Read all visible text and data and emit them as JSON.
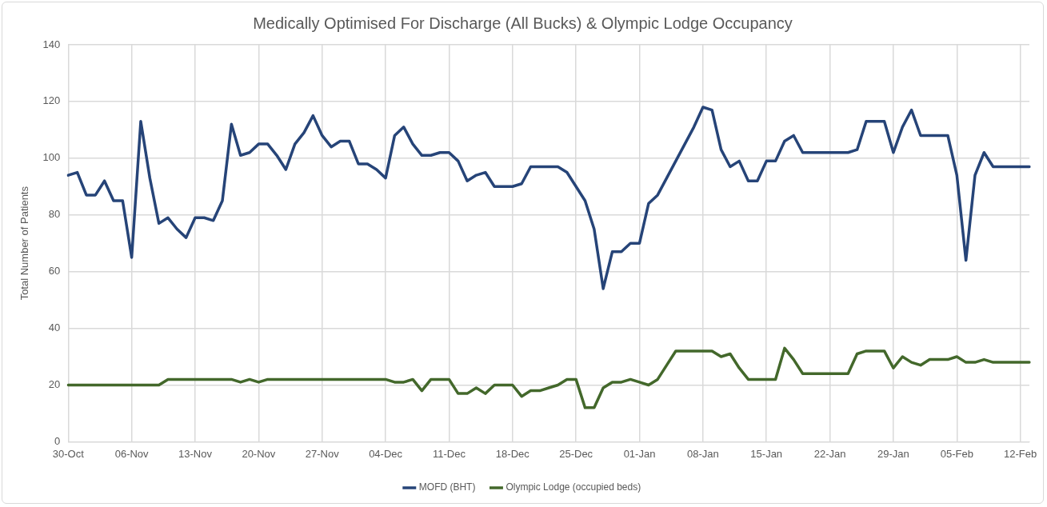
{
  "chart_data": {
    "type": "line",
    "title": "Medically Optimised For Discharge (All Bucks) & Olympic Lodge Occupancy",
    "ylabel": "Total Number of Patients",
    "categories": [
      "30-Oct",
      null,
      null,
      null,
      null,
      null,
      null,
      "06-Nov",
      null,
      null,
      null,
      null,
      null,
      null,
      "13-Nov",
      null,
      null,
      null,
      null,
      null,
      null,
      "20-Nov",
      null,
      null,
      null,
      null,
      null,
      null,
      "27-Nov",
      null,
      null,
      null,
      null,
      null,
      null,
      "04-Dec",
      null,
      null,
      null,
      null,
      null,
      null,
      "11-Dec",
      null,
      null,
      null,
      null,
      null,
      null,
      "18-Dec",
      null,
      null,
      null,
      null,
      null,
      null,
      "25-Dec",
      null,
      null,
      null,
      null,
      null,
      null,
      "01-Jan",
      null,
      null,
      null,
      null,
      null,
      null,
      "08-Jan",
      null,
      null,
      null,
      null,
      null,
      null,
      "15-Jan",
      null,
      null,
      null,
      null,
      null,
      null,
      "22-Jan",
      null,
      null,
      null,
      null,
      null,
      null,
      "29-Jan",
      null,
      null,
      null,
      null,
      null,
      null,
      "05-Feb",
      null,
      null,
      null,
      null,
      null,
      null,
      "12-Feb",
      null
    ],
    "series": [
      {
        "name": "MOFD (BHT)",
        "color": "#264478",
        "values": [
          94,
          95,
          87,
          87,
          92,
          85,
          85,
          65,
          113,
          93,
          77,
          79,
          75,
          72,
          79,
          79,
          78,
          85,
          112,
          101,
          102,
          105,
          105,
          101,
          96,
          105,
          109,
          115,
          108,
          104,
          106,
          106,
          98,
          98,
          96,
          93,
          108,
          111,
          105,
          101,
          101,
          102,
          102,
          99,
          92,
          94,
          95,
          90,
          90,
          90,
          91,
          97,
          97,
          97,
          97,
          95,
          90,
          85,
          75,
          54,
          67,
          67,
          70,
          70,
          84,
          87,
          93,
          99,
          105,
          111,
          118,
          117,
          103,
          97,
          99,
          92,
          92,
          99,
          99,
          106,
          108,
          102,
          102,
          102,
          102,
          102,
          102,
          103,
          113,
          113,
          113,
          102,
          111,
          117,
          108,
          108,
          108,
          108,
          94,
          64,
          94,
          102,
          97,
          97,
          97,
          97,
          97
        ]
      },
      {
        "name": "Olympic Lodge (occupied beds)",
        "color": "#43682b",
        "values": [
          20,
          20,
          20,
          20,
          20,
          20,
          20,
          20,
          20,
          20,
          20,
          22,
          22,
          22,
          22,
          22,
          22,
          22,
          22,
          21,
          22,
          21,
          22,
          22,
          22,
          22,
          22,
          22,
          22,
          22,
          22,
          22,
          22,
          22,
          22,
          22,
          21,
          21,
          22,
          18,
          22,
          22,
          22,
          17,
          17,
          19,
          17,
          20,
          20,
          20,
          16,
          18,
          18,
          19,
          20,
          22,
          22,
          12,
          12,
          19,
          21,
          21,
          22,
          21,
          20,
          22,
          27,
          32,
          32,
          32,
          32,
          32,
          30,
          31,
          26,
          22,
          22,
          22,
          22,
          33,
          29,
          24,
          24,
          24,
          24,
          24,
          24,
          31,
          32,
          32,
          32,
          26,
          30,
          28,
          27,
          29,
          29,
          29,
          30,
          28,
          28,
          29,
          28,
          28,
          28,
          28,
          28
        ]
      }
    ],
    "ylim": [
      0,
      140
    ],
    "yticks": [
      0,
      20,
      40,
      60,
      80,
      100,
      120,
      140
    ],
    "grid": true,
    "legend": "bottom",
    "marker": "none",
    "line_style": "solid"
  }
}
